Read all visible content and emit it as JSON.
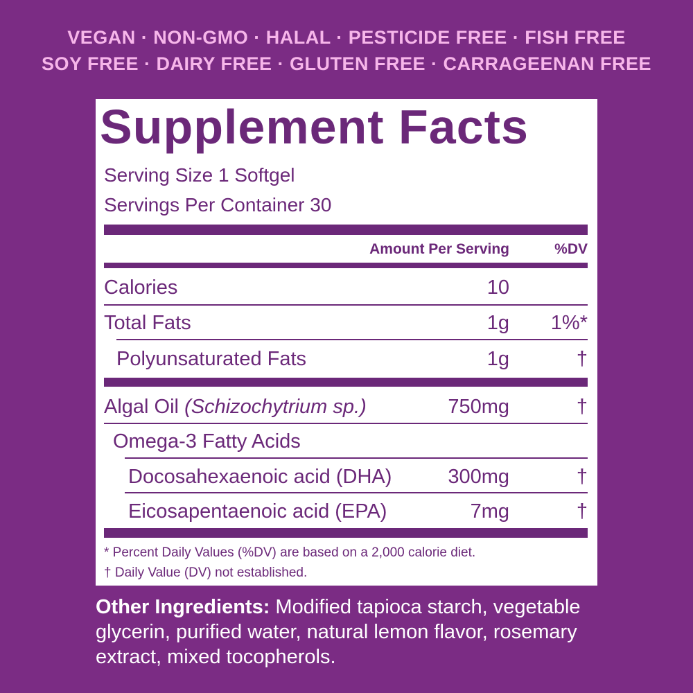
{
  "badges": [
    "VEGAN · NON-GMO · HALAL · PESTICIDE FREE · FISH FREE",
    "SOY FREE · DAIRY FREE · GLUTEN FREE · CARRAGEENAN FREE"
  ],
  "panel": {
    "title": "Supplement Facts",
    "serving_size": "Serving Size 1 Softgel",
    "servings_per_container": "Servings Per Container 30",
    "header": {
      "amount": "Amount Per Serving",
      "dv": "%DV"
    },
    "rows": [
      {
        "name": "Calories",
        "amount": "10"
      },
      {
        "name": "Total Fats",
        "amount": "1g",
        "dv": "1%*"
      },
      {
        "name": "Polyunsaturated Fats",
        "amount": "1g",
        "dv": "†"
      },
      {
        "name": "Algal Oil",
        "name_note": "(Schizochytrium sp.)",
        "amount": "750mg",
        "dv": "†"
      },
      {
        "name": "Omega-3 Fatty Acids"
      },
      {
        "name": "Docosahexaenoic acid (DHA)",
        "amount": "300mg",
        "dv": "†"
      },
      {
        "name": "Eicosapentaenoic acid (EPA)",
        "amount": "7mg",
        "dv": "†"
      }
    ],
    "footnotes": [
      "* Percent Daily Values (%DV) are based on a 2,000 calorie diet.",
      "† Daily Value (DV) not established."
    ]
  },
  "other_ingredients": {
    "label": "Other Ingredients:",
    "text": "Modified tapioca starch, vegetable glycerin, purified water, natural lemon flavor, rosemary extract, mixed tocopherols."
  }
}
